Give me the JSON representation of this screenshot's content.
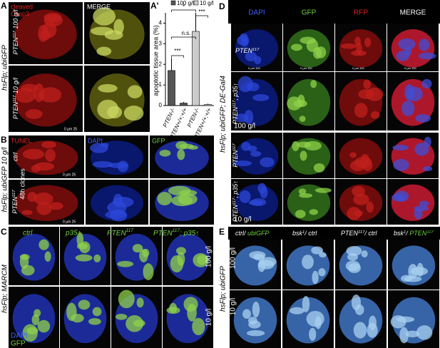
{
  "panel_a": {
    "letter": "A",
    "channel_1": "cleaved",
    "channel_2": "Casp3",
    "merge": "MERGE",
    "row_1": [
      "PTEN",
      {
        "sup": "117"
      },
      " 100 g/l"
    ],
    "row_2": [
      "PTEN",
      {
        "sup": "117"
      },
      " 10 g/l"
    ],
    "genotype": "hsFlp; ubiGFP",
    "scale": "0 µm 25"
  },
  "chart_data": {
    "type": "bar",
    "letter": "A'",
    "y_label": "apoptotic tissue area (%)",
    "categories": [
      "PTEN-/-",
      "PTEN+/+;+/+",
      "PTEN-/-",
      "PTEN+/+;+/+"
    ],
    "series": [
      {
        "name": "100 g/l",
        "color": "#555555",
        "values": [
          1.7,
          0.12,
          null,
          null
        ],
        "errors": [
          0.6,
          0.05,
          null,
          null
        ]
      },
      {
        "name": "10 g/l",
        "color": "#cccccc",
        "values": [
          null,
          null,
          3.6,
          0.05
        ],
        "errors": [
          null,
          null,
          0.9,
          0.04
        ]
      }
    ],
    "ylim": [
      0,
      4.5
    ],
    "yticks": [
      0,
      1,
      2,
      3,
      4
    ],
    "annotations": [
      "***",
      "n.s.",
      "*",
      "***"
    ]
  },
  "panel_b": {
    "letter": "B",
    "channels": [
      "TUNEL",
      "DAPI",
      "GFP"
    ],
    "row_1": "ctrl",
    "row_2": [
      "PTEN",
      {
        "sup": "117"
      }
    ],
    "timing": "48h clones",
    "genotype": "hsFlp; ubiGFP 10 g/l",
    "scale": "0 µm 25"
  },
  "panel_c": {
    "letter": "C",
    "columns": [
      "ctrl",
      "p35↑",
      [
        "PTEN",
        {
          "sup": "117"
        }
      ],
      [
        "PTEN",
        {
          "sup": "117"
        },
        "; p35↑"
      ]
    ],
    "rows": [
      "100 g/l",
      "10 g/l"
    ],
    "genotype": "hsFlp; MARCM",
    "stain_1": "DAPI",
    "stain_2": "GFP"
  },
  "panel_d": {
    "letter": "D",
    "channels": [
      "DAPI",
      "GFP",
      "RFP",
      "MERGE"
    ],
    "rows": [
      [
        "PTEN",
        {
          "sup": "117"
        }
      ],
      [
        "PTEN",
        {
          "sup": "117"
        },
        "; p35↑"
      ],
      [
        "PTEN",
        {
          "sup": "117"
        }
      ],
      [
        "PTEN",
        {
          "sup": "117"
        },
        "; p35↑"
      ]
    ],
    "conditions": [
      "100 g/l",
      "10 g/l"
    ],
    "genotype": "hsFlp; ubiGFP; DE-Gal4",
    "scale": "0 µm 100"
  },
  "panel_e": {
    "letter": "E",
    "columns": [
      [
        "ctrl/ ",
        "ubiGFP"
      ],
      [
        "bsk",
        {
          "sup": "1"
        },
        "/ ctrl"
      ],
      [
        "PTEN",
        {
          "sup": "117"
        },
        "/ ctrl"
      ],
      [
        "bsk",
        {
          "sup": "1"
        },
        "/ ",
        "PTEN",
        {
          "sup": "117"
        }
      ]
    ],
    "rows": [
      "100 g/l",
      "10 g/l"
    ],
    "genotype": "hsFlp; ubiGFP"
  }
}
